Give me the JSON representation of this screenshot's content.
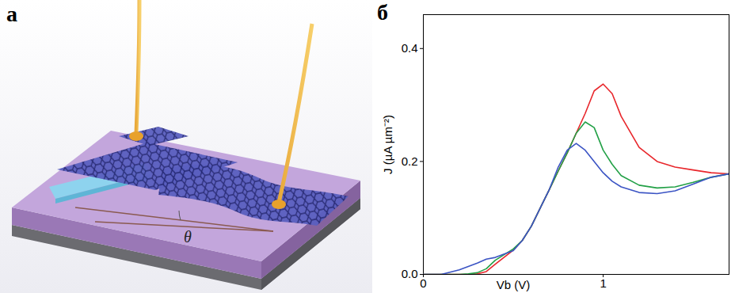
{
  "figure": {
    "panel_labels": [
      "а",
      "б"
    ]
  },
  "diagram": {
    "angle_label": "θ"
  },
  "chart_data": {
    "type": "line",
    "x_label": "Vb (V)",
    "y_label": "J (µA µm⁻²)",
    "x": [
      0,
      0.1,
      0.2,
      0.25,
      0.3,
      0.35,
      0.4,
      0.5,
      0.55,
      0.6,
      0.7,
      0.75,
      0.8,
      0.85,
      0.9,
      0.95,
      1.0,
      1.05,
      1.1,
      1.2,
      1.3,
      1.4,
      1.5,
      1.6,
      1.7
    ],
    "series": [
      {
        "color": "#e8262b",
        "values": [
          0,
          0,
          0,
          0,
          0.001,
          0.005,
          0.018,
          0.043,
          0.06,
          0.085,
          0.15,
          0.183,
          0.215,
          0.25,
          0.285,
          0.325,
          0.337,
          0.32,
          0.28,
          0.225,
          0.2,
          0.19,
          0.185,
          0.18,
          0.178
        ]
      },
      {
        "color": "#22a046",
        "values": [
          0,
          0,
          0,
          0.001,
          0.003,
          0.01,
          0.025,
          0.045,
          0.06,
          0.085,
          0.15,
          0.183,
          0.215,
          0.25,
          0.27,
          0.26,
          0.22,
          0.195,
          0.175,
          0.158,
          0.153,
          0.155,
          0.163,
          0.172,
          0.178
        ]
      },
      {
        "color": "#3b54c4",
        "values": [
          0,
          0,
          0.008,
          0.014,
          0.02,
          0.027,
          0.03,
          0.042,
          0.06,
          0.085,
          0.15,
          0.19,
          0.22,
          0.232,
          0.22,
          0.2,
          0.18,
          0.165,
          0.155,
          0.145,
          0.143,
          0.148,
          0.16,
          0.172,
          0.178
        ]
      }
    ],
    "xlim": [
      0,
      1.7
    ],
    "ylim": [
      0,
      0.46
    ],
    "xticks": [
      0,
      1
    ],
    "yticks": [
      {
        "value": 0,
        "label": "0.0"
      },
      {
        "value": 0.2,
        "label": "0.2"
      },
      {
        "value": 0.4,
        "label": "0.4"
      }
    ],
    "grid": false
  }
}
